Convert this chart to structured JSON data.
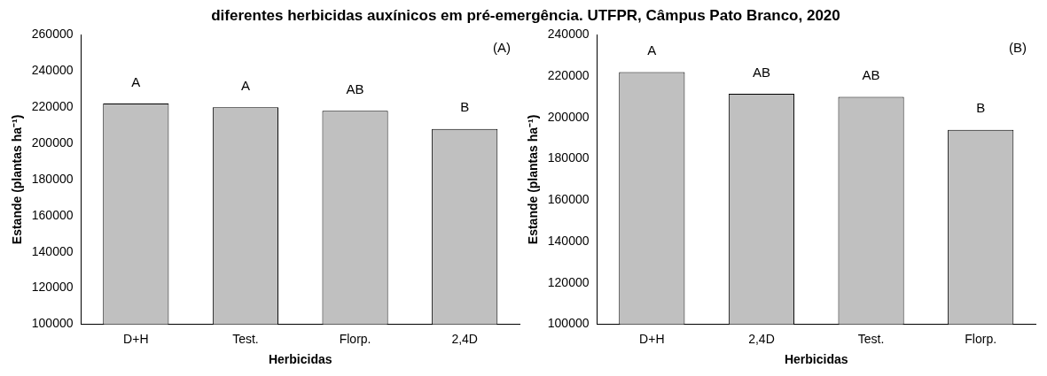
{
  "chart_data": [
    {
      "type": "bar",
      "title": "diferentes herbicidas auxínicos em pré-emergência. UTFPR, Câmpus Pato Branco, 2020",
      "xlabel": "Herbicidas",
      "ylabel": "Estande (plantas ha⁻¹)",
      "categories": [
        "D+H",
        "Test.",
        "Florp.",
        "2,4D"
      ],
      "series": [
        {
          "color": "#c0c0c0",
          "values": [
            222000,
            220000,
            218000,
            208000
          ]
        }
      ],
      "ylim": [
        100000,
        260000
      ],
      "yticks": [
        100000,
        120000,
        140000,
        160000,
        180000,
        200000,
        220000,
        240000,
        260000
      ],
      "grid": false,
      "legend": false,
      "annotations": [
        "(A)",
        "A",
        "A",
        "AB",
        "B"
      ]
    },
    {
      "type": "bar",
      "xlabel": "Herbicidas",
      "ylabel": "Estande (plantas ha⁻¹)",
      "categories": [
        "D+H",
        "2,4D",
        "Test.",
        "Florp."
      ],
      "series": [
        {
          "color": "#c0c0c0",
          "values": [
            222000,
            211500,
            210000,
            194000
          ]
        }
      ],
      "ylim": [
        100000,
        240000
      ],
      "yticks": [
        100000,
        120000,
        140000,
        160000,
        180000,
        200000,
        220000,
        240000
      ],
      "grid": false,
      "legend": false,
      "annotations": [
        "(B)",
        "A",
        "AB",
        "AB",
        "B"
      ]
    }
  ]
}
